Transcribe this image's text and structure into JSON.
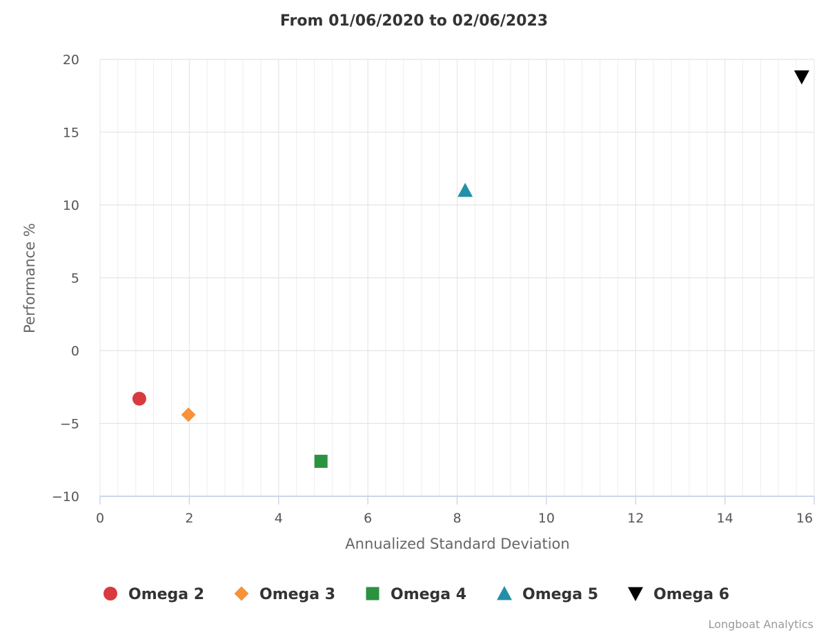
{
  "chart_data": {
    "type": "scatter",
    "title": "From 01/06/2020 to 02/06/2023",
    "xlabel": "Annualized Standard Deviation",
    "ylabel": "Performance %",
    "xlim": [
      0,
      16
    ],
    "ylim": [
      -10,
      20
    ],
    "x_ticks": [
      "0",
      "2",
      "4",
      "6",
      "8",
      "10",
      "12",
      "14",
      "16"
    ],
    "y_ticks": [
      "20",
      "15",
      "10",
      "5",
      "0",
      "−10"
    ],
    "y_tick_values": [
      20,
      15,
      10,
      5,
      0,
      -10
    ],
    "y_tick_labels_all": [
      "−10",
      "−5",
      "0",
      "5",
      "10",
      "15",
      "20"
    ],
    "grid": true,
    "legend_position": "bottom",
    "series": [
      {
        "name": "Omega 2",
        "marker": "circle",
        "color": "#d93a3f",
        "x": 0.88,
        "y": -3.3
      },
      {
        "name": "Omega 3",
        "marker": "diamond",
        "color": "#f7923a",
        "x": 1.98,
        "y": -4.4
      },
      {
        "name": "Omega 4",
        "marker": "square",
        "color": "#2b9240",
        "x": 4.95,
        "y": -7.6
      },
      {
        "name": "Omega 5",
        "marker": "triangle-up",
        "color": "#2390a8",
        "x": 8.18,
        "y": 11.0
      },
      {
        "name": "Omega 6",
        "marker": "triangle-down",
        "color": "#000000",
        "x": 15.72,
        "y": 18.8
      }
    ]
  },
  "credit": "Longboat Analytics"
}
